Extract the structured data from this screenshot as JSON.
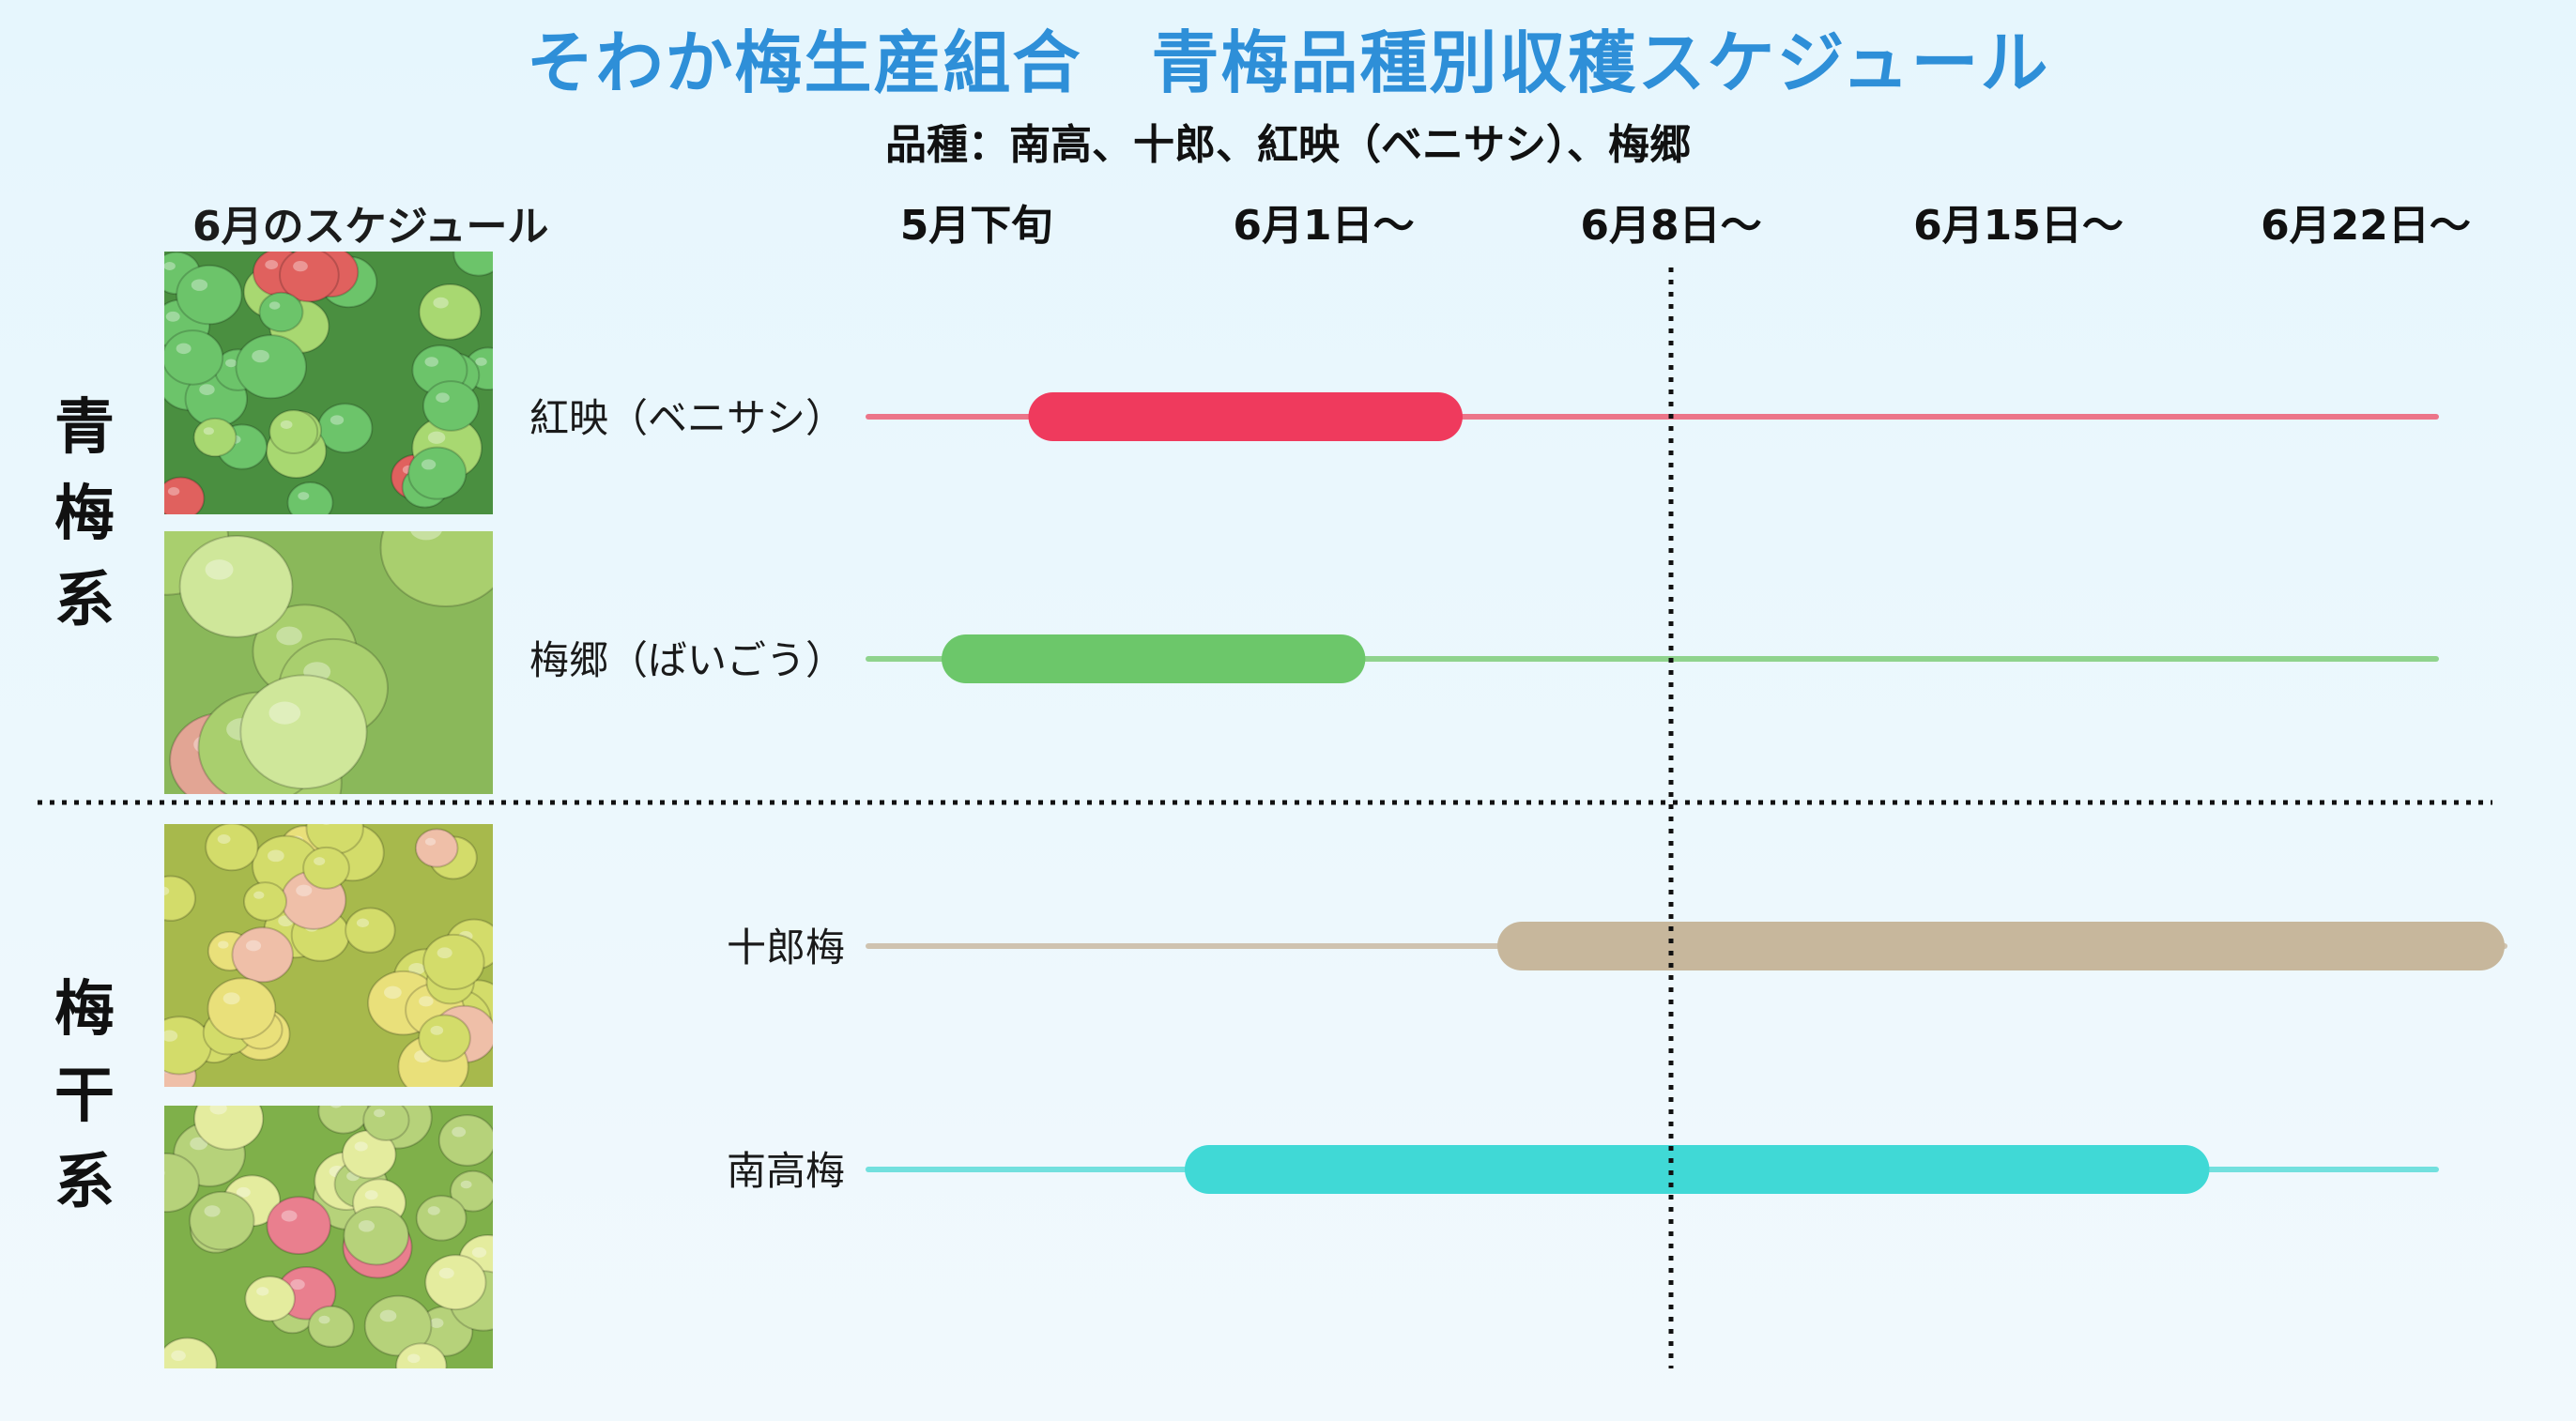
{
  "header": {
    "title": "そわか梅生産組合　青梅品種別収穫スケジュール",
    "subtitle": "品種：南高、十郎、紅映（ベニサシ）、梅郷",
    "schedule_label": "6月のスケジュール"
  },
  "groups": [
    {
      "label_chars": [
        "青",
        "梅",
        "系"
      ]
    },
    {
      "label_chars": [
        "梅",
        "干",
        "系"
      ]
    }
  ],
  "photos": [
    {
      "icon": "green-ume-pile-photo",
      "palette": [
        "#6cc46a",
        "#a8d871",
        "#e0615e",
        "#4a8f40"
      ]
    },
    {
      "icon": "ume-in-hand-photo",
      "palette": [
        "#a9cf6e",
        "#cfe79a",
        "#e2a594",
        "#8ab85a"
      ]
    },
    {
      "icon": "ripe-ume-in-hand-photo",
      "palette": [
        "#d3dc6a",
        "#e9e07a",
        "#efbfa8",
        "#a7b94c"
      ]
    },
    {
      "icon": "blush-ume-pile-photo",
      "palette": [
        "#b6d27a",
        "#e4ec9e",
        "#e97f8e",
        "#7fb04a"
      ]
    }
  ],
  "chart_data": {
    "type": "gantt",
    "x_categories": [
      "5月下旬",
      "6月1日〜",
      "6月8日〜",
      "6月15日〜",
      "6月22日〜"
    ],
    "x_unit": "week index (0 = 5月下旬)",
    "reference_line": {
      "at": 2.0,
      "style": "dotted"
    },
    "series": [
      {
        "name": "紅映（ベニサシ）",
        "group": 0,
        "start": 0.15,
        "end": 1.4,
        "color": "#ef3a5d",
        "track_color": "#ec7589"
      },
      {
        "name": "梅郷（ばいごう）",
        "group": 0,
        "start": -0.1,
        "end": 1.12,
        "color": "#6cc76a",
        "track_color": "#8fd38d"
      },
      {
        "name": "十郎梅",
        "group": 1,
        "start": 1.5,
        "end": 4.4,
        "color": "#c7b79c",
        "track_color": "#cfc3b0"
      },
      {
        "name": "南高梅",
        "group": 1,
        "start": 0.6,
        "end": 3.55,
        "color": "#40d9d6",
        "track_color": "#72e0de"
      }
    ]
  }
}
